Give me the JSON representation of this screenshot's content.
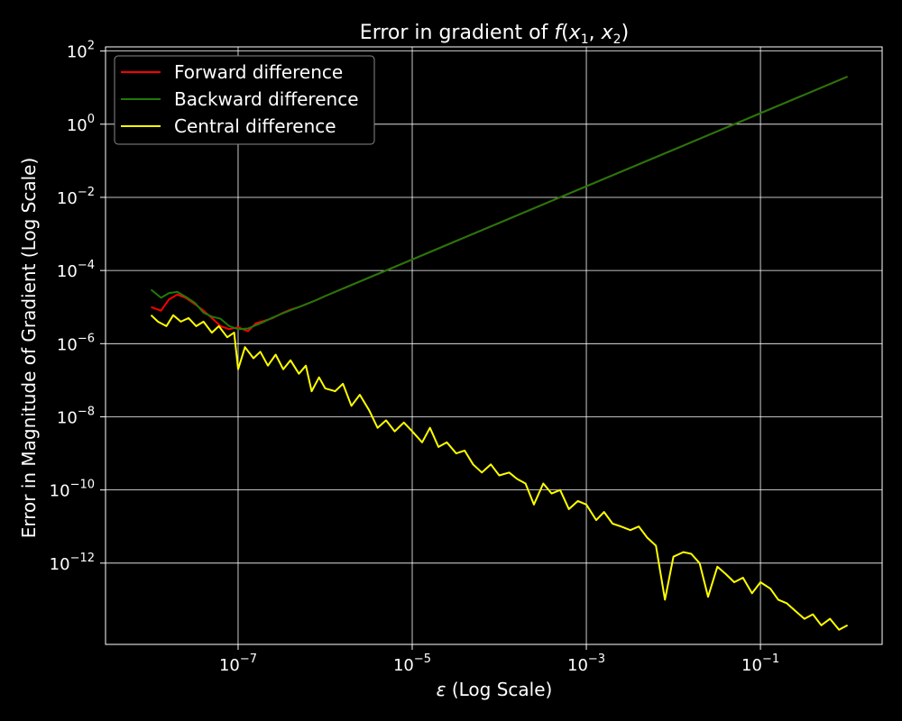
{
  "chart_data": {
    "type": "line",
    "title": "Error in gradient of",
    "title_math": {
      "f": "f",
      "open": "(",
      "x": "x",
      "s1": "1",
      "sep": ", ",
      "s2": "2",
      "close": ")"
    },
    "xlabel": {
      "sym": "ε",
      "text": " (Log Scale)"
    },
    "ylabel": "Error in Magnitude of Gradient (Log Scale)",
    "x_scale": "log",
    "y_scale": "log",
    "xlim": [
      3e-09,
      2.5
    ],
    "ylim": [
      6e-15,
      130
    ],
    "grid": true,
    "legend_position": "top-left",
    "background": "#000000",
    "foreground": "#ffffff",
    "x_ticks": [
      {
        "exp": -7,
        "base": "10",
        "sup": "−7"
      },
      {
        "exp": -5,
        "base": "10",
        "sup": "−5"
      },
      {
        "exp": -3,
        "base": "10",
        "sup": "−3"
      },
      {
        "exp": -1,
        "base": "10",
        "sup": "−1"
      }
    ],
    "y_ticks": [
      {
        "exp": 2,
        "base": "10",
        "sup": "2"
      },
      {
        "exp": 0,
        "base": "10",
        "sup": "0"
      },
      {
        "exp": -2,
        "base": "10",
        "sup": "−2"
      },
      {
        "exp": -4,
        "base": "10",
        "sup": "−4"
      },
      {
        "exp": -6,
        "base": "10",
        "sup": "−6"
      },
      {
        "exp": -8,
        "base": "10",
        "sup": "−8"
      },
      {
        "exp": -10,
        "base": "10",
        "sup": "−10"
      },
      {
        "exp": -12,
        "base": "10",
        "sup": "−12"
      }
    ],
    "series": [
      {
        "name": "Forward difference",
        "color": "#ff0000",
        "points": [
          [
            1e-08,
            1e-05
          ],
          [
            1.3e-08,
            8e-06
          ],
          [
            1.6e-08,
            1.6e-05
          ],
          [
            2e-08,
            2.2e-05
          ],
          [
            2.5e-08,
            1.8e-05
          ],
          [
            3.2e-08,
            1.2e-05
          ],
          [
            4e-08,
            8e-06
          ],
          [
            5e-08,
            5e-06
          ],
          [
            6.3e-08,
            3e-06
          ],
          [
            7.9e-08,
            2.5e-06
          ],
          [
            1e-07,
            2.8e-06
          ],
          [
            1.3e-07,
            2.2e-06
          ],
          [
            1.6e-07,
            3.6e-06
          ],
          [
            2e-07,
            4.2e-06
          ],
          [
            2.5e-07,
            5e-06
          ],
          [
            3.2e-07,
            6.8e-06
          ],
          [
            4e-07,
            8.5e-06
          ],
          [
            5e-07,
            1e-05
          ],
          [
            6.3e-07,
            1.25e-05
          ],
          [
            7.9e-07,
            1.55e-05
          ],
          [
            1e-06,
            2e-05
          ],
          [
            1e-05,
            0.0002
          ],
          [
            0.0001,
            0.002
          ],
          [
            0.001,
            0.02
          ],
          [
            0.01,
            0.2
          ],
          [
            0.1,
            2.0
          ],
          [
            1.0,
            20
          ]
        ]
      },
      {
        "name": "Backward difference",
        "color": "#1f7a0a",
        "points": [
          [
            1e-08,
            3e-05
          ],
          [
            1.3e-08,
            1.8e-05
          ],
          [
            1.6e-08,
            2.4e-05
          ],
          [
            2e-08,
            2.6e-05
          ],
          [
            2.5e-08,
            1.9e-05
          ],
          [
            3.2e-08,
            1.3e-05
          ],
          [
            4e-08,
            7e-06
          ],
          [
            5e-08,
            5.5e-06
          ],
          [
            6.3e-08,
            4.8e-06
          ],
          [
            7.9e-08,
            3e-06
          ],
          [
            1e-07,
            2.5e-06
          ],
          [
            1.3e-07,
            2.6e-06
          ],
          [
            1.6e-07,
            3.2e-06
          ],
          [
            2e-07,
            4e-06
          ],
          [
            2.5e-07,
            5.2e-06
          ],
          [
            3.2e-07,
            6.6e-06
          ],
          [
            4e-07,
            8.2e-06
          ],
          [
            5e-07,
            1e-05
          ],
          [
            6.3e-07,
            1.25e-05
          ],
          [
            7.9e-07,
            1.55e-05
          ],
          [
            1e-06,
            2e-05
          ],
          [
            1e-05,
            0.0002
          ],
          [
            0.0001,
            0.002
          ],
          [
            0.001,
            0.02
          ],
          [
            0.01,
            0.2
          ],
          [
            0.1,
            2.0
          ],
          [
            1.0,
            20
          ]
        ]
      },
      {
        "name": "Central difference",
        "color": "#ffff00",
        "points": [
          [
            1e-08,
            6e-06
          ],
          [
            1.2e-08,
            4e-06
          ],
          [
            1.5e-08,
            3e-06
          ],
          [
            1.8e-08,
            6e-06
          ],
          [
            2.2e-08,
            4e-06
          ],
          [
            2.7e-08,
            5e-06
          ],
          [
            3.3e-08,
            3e-06
          ],
          [
            4e-08,
            4e-06
          ],
          [
            5e-08,
            2e-06
          ],
          [
            6e-08,
            3e-06
          ],
          [
            7.5e-08,
            1.5e-06
          ],
          [
            9e-08,
            2e-06
          ],
          [
            1e-07,
            2e-07
          ],
          [
            1.2e-07,
            8e-07
          ],
          [
            1.5e-07,
            4e-07
          ],
          [
            1.8e-07,
            6e-07
          ],
          [
            2.2e-07,
            2.5e-07
          ],
          [
            2.7e-07,
            5e-07
          ],
          [
            3.3e-07,
            2e-07
          ],
          [
            4e-07,
            3.5e-07
          ],
          [
            5e-07,
            1.5e-07
          ],
          [
            6e-07,
            2.5e-07
          ],
          [
            7e-07,
            5e-08
          ],
          [
            8.5e-07,
            1.2e-07
          ],
          [
            1e-06,
            6e-08
          ],
          [
            1.3e-06,
            5e-08
          ],
          [
            1.6e-06,
            8e-08
          ],
          [
            2e-06,
            2e-08
          ],
          [
            2.5e-06,
            4e-08
          ],
          [
            3.2e-06,
            1.5e-08
          ],
          [
            4e-06,
            5e-09
          ],
          [
            5e-06,
            8e-09
          ],
          [
            6.3e-06,
            4e-09
          ],
          [
            8e-06,
            7e-09
          ],
          [
            1e-05,
            4e-09
          ],
          [
            1.3e-05,
            2e-09
          ],
          [
            1.6e-05,
            5e-09
          ],
          [
            2e-05,
            1.5e-09
          ],
          [
            2.5e-05,
            2e-09
          ],
          [
            3.2e-05,
            1e-09
          ],
          [
            4e-05,
            1.2e-09
          ],
          [
            5e-05,
            5e-10
          ],
          [
            6.3e-05,
            3e-10
          ],
          [
            8e-05,
            5e-10
          ],
          [
            0.0001,
            2.5e-10
          ],
          [
            0.00013,
            3e-10
          ],
          [
            0.00016,
            2e-10
          ],
          [
            0.0002,
            1.5e-10
          ],
          [
            0.00025,
            4e-11
          ],
          [
            0.00032,
            1.5e-10
          ],
          [
            0.0004,
            8e-11
          ],
          [
            0.0005,
            1e-10
          ],
          [
            0.00063,
            3e-11
          ],
          [
            0.0008,
            5e-11
          ],
          [
            0.001,
            4e-11
          ],
          [
            0.0013,
            1.5e-11
          ],
          [
            0.0016,
            2.5e-11
          ],
          [
            0.002,
            1.2e-11
          ],
          [
            0.0025,
            1e-11
          ],
          [
            0.0032,
            8e-12
          ],
          [
            0.004,
            1e-11
          ],
          [
            0.005,
            5e-12
          ],
          [
            0.0063,
            3e-12
          ],
          [
            0.008,
            1e-13
          ],
          [
            0.01,
            1.5e-12
          ],
          [
            0.013,
            2e-12
          ],
          [
            0.016,
            1.8e-12
          ],
          [
            0.02,
            1e-12
          ],
          [
            0.025,
            1.2e-13
          ],
          [
            0.032,
            8e-13
          ],
          [
            0.04,
            5e-13
          ],
          [
            0.05,
            3e-13
          ],
          [
            0.063,
            4e-13
          ],
          [
            0.08,
            1.5e-13
          ],
          [
            0.1,
            3e-13
          ],
          [
            0.13,
            2e-13
          ],
          [
            0.16,
            1e-13
          ],
          [
            0.2,
            8e-14
          ],
          [
            0.25,
            5e-14
          ],
          [
            0.32,
            3e-14
          ],
          [
            0.4,
            4e-14
          ],
          [
            0.5,
            2e-14
          ],
          [
            0.63,
            3e-14
          ],
          [
            0.8,
            1.5e-14
          ],
          [
            1.0,
            2e-14
          ]
        ]
      }
    ]
  }
}
